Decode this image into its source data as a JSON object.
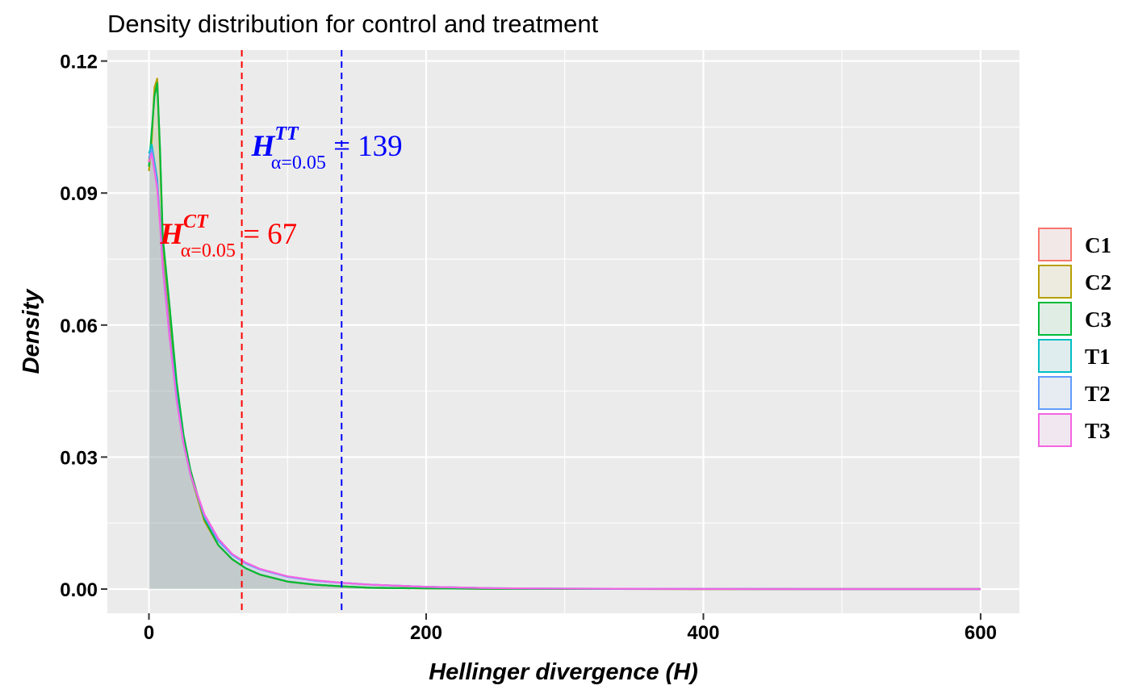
{
  "chart_data": {
    "type": "area",
    "title": "Density distribution for control and treatment",
    "xlabel": "Hellinger divergence (H)",
    "ylabel": "Density",
    "xlim": [
      -30,
      628
    ],
    "ylim": [
      -0.0055,
      0.1225
    ],
    "x_ticks": [
      0,
      200,
      400,
      600
    ],
    "y_ticks": [
      0.0,
      0.03,
      0.06,
      0.09,
      0.12
    ],
    "x_tick_labels": [
      "0",
      "200",
      "400",
      "600"
    ],
    "y_tick_labels": [
      "0.00",
      "0.03",
      "0.06",
      "0.09",
      "0.12"
    ],
    "grid": true,
    "legend_position": "right",
    "series": [
      {
        "name": "C1",
        "color": "#F8766D",
        "x": [
          0,
          2,
          4,
          6,
          8,
          10,
          15,
          20,
          25,
          30,
          40,
          50,
          60,
          70,
          80,
          100,
          120,
          140,
          160,
          200,
          250,
          300,
          400,
          500,
          600
        ],
        "y": [
          0.097,
          0.103,
          0.113,
          0.1155,
          0.098,
          0.078,
          0.062,
          0.045,
          0.034,
          0.026,
          0.0155,
          0.01,
          0.0068,
          0.0047,
          0.0033,
          0.0017,
          0.001,
          0.0006,
          0.0003,
          0.00015,
          5e-05,
          2e-05,
          5e-06,
          2e-06,
          0.0
        ]
      },
      {
        "name": "C2",
        "color": "#B79F00",
        "x": [
          0,
          2,
          4,
          6,
          8,
          10,
          15,
          20,
          25,
          30,
          40,
          50,
          60,
          70,
          80,
          100,
          120,
          140,
          160,
          200,
          250,
          300,
          400,
          500,
          600
        ],
        "y": [
          0.095,
          0.102,
          0.114,
          0.116,
          0.099,
          0.079,
          0.063,
          0.046,
          0.034,
          0.026,
          0.0155,
          0.01,
          0.0068,
          0.0047,
          0.0033,
          0.0017,
          0.001,
          0.0006,
          0.0003,
          0.00015,
          5e-05,
          2e-05,
          5e-06,
          2e-06,
          0.0
        ]
      },
      {
        "name": "C3",
        "color": "#00BA38",
        "x": [
          0,
          2,
          4,
          6,
          8,
          10,
          15,
          20,
          25,
          30,
          40,
          50,
          60,
          70,
          80,
          100,
          120,
          140,
          160,
          200,
          250,
          300,
          400,
          500,
          600
        ],
        "y": [
          0.096,
          0.104,
          0.112,
          0.115,
          0.1,
          0.08,
          0.064,
          0.047,
          0.035,
          0.027,
          0.016,
          0.01,
          0.0068,
          0.0047,
          0.0033,
          0.0017,
          0.001,
          0.0006,
          0.0003,
          0.00015,
          5e-05,
          2e-05,
          5e-06,
          2e-06,
          0.0
        ]
      },
      {
        "name": "T1",
        "color": "#00BFC4",
        "x": [
          0,
          2,
          4,
          6,
          8,
          10,
          15,
          20,
          25,
          30,
          40,
          50,
          60,
          70,
          80,
          100,
          120,
          140,
          160,
          200,
          250,
          300,
          400,
          500,
          600
        ],
        "y": [
          0.099,
          0.101,
          0.097,
          0.093,
          0.084,
          0.074,
          0.058,
          0.044,
          0.033,
          0.026,
          0.0165,
          0.011,
          0.0078,
          0.0058,
          0.0045,
          0.0028,
          0.0019,
          0.0014,
          0.001,
          0.0005,
          0.0002,
          0.0001,
          2e-05,
          5e-06,
          0.0
        ]
      },
      {
        "name": "T2",
        "color": "#619CFF",
        "x": [
          0,
          2,
          4,
          6,
          8,
          10,
          15,
          20,
          25,
          30,
          40,
          50,
          60,
          70,
          80,
          100,
          120,
          140,
          160,
          200,
          250,
          300,
          400,
          500,
          600
        ],
        "y": [
          0.098,
          0.1,
          0.096,
          0.092,
          0.084,
          0.073,
          0.057,
          0.043,
          0.033,
          0.026,
          0.0165,
          0.011,
          0.0078,
          0.0058,
          0.0045,
          0.0028,
          0.0019,
          0.0014,
          0.001,
          0.0005,
          0.0002,
          0.0001,
          2e-05,
          5e-06,
          0.0
        ]
      },
      {
        "name": "T3",
        "color": "#F564E3",
        "x": [
          0,
          2,
          4,
          6,
          8,
          10,
          15,
          20,
          25,
          30,
          40,
          50,
          60,
          70,
          80,
          100,
          120,
          140,
          160,
          200,
          250,
          300,
          400,
          500,
          600
        ],
        "y": [
          0.097,
          0.099,
          0.095,
          0.091,
          0.083,
          0.073,
          0.057,
          0.043,
          0.033,
          0.026,
          0.017,
          0.0115,
          0.008,
          0.006,
          0.0046,
          0.0029,
          0.002,
          0.0014,
          0.001,
          0.0005,
          0.0002,
          0.0001,
          2e-05,
          5e-06,
          0.0
        ]
      }
    ],
    "vlines": [
      {
        "x": 67,
        "color": "#FF0000",
        "dash": "dashed"
      },
      {
        "x": 139,
        "color": "#0000FF",
        "dash": "dashed"
      }
    ],
    "annotations": [
      {
        "symbol": "H",
        "superscript": "CT",
        "subscript": "α=0.05",
        "text": " = 67",
        "color": "#FF0000",
        "x": 8,
        "y": 0.0785
      },
      {
        "symbol": "H",
        "superscript": "TT",
        "subscript": "α=0.05",
        "text": " = 139",
        "color": "#0000FF",
        "x": 74,
        "y": 0.0985
      }
    ]
  }
}
